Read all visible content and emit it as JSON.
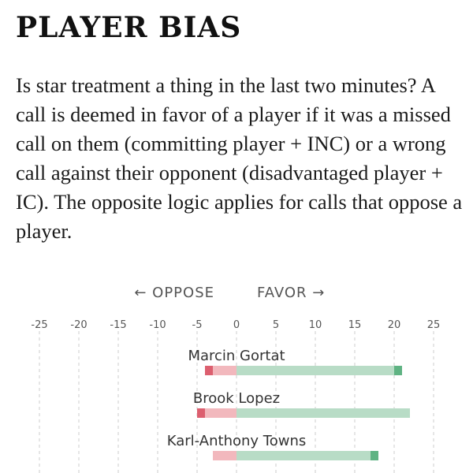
{
  "title": "PLAYER BIAS",
  "intro": "Is star treatment a thing in the last two minutes? A call is deemed in favor of a player if it was a missed call on them (committing player + INC) or a wrong call against their opponent (disadvantaged player + IC). The opposite logic applies for calls that oppose a player.",
  "chart_data": {
    "type": "bar",
    "direction_labels": {
      "left": "← OPPOSE",
      "right": "FAVOR →"
    },
    "xlim": [
      -25,
      25
    ],
    "ticks": [
      -25,
      -20,
      -15,
      -10,
      -5,
      0,
      5,
      10,
      15,
      20,
      25
    ],
    "grid": true,
    "colors": {
      "oppose_light": "#f2b8bd",
      "oppose_dark": "#dc5f6f",
      "favor_light": "#b8dcc6",
      "favor_dark": "#5fb383",
      "grid": "#cccccc"
    },
    "players": [
      {
        "name": "Marcin Gortat",
        "oppose_total": -4,
        "oppose_dark": 1,
        "favor_total": 21,
        "favor_dark": 1
      },
      {
        "name": "Brook Lopez",
        "oppose_total": -5,
        "oppose_dark": 1,
        "favor_total": 22,
        "favor_dark": 0
      },
      {
        "name": "Karl-Anthony Towns",
        "oppose_total": -3,
        "oppose_dark": 0,
        "favor_total": 18,
        "favor_dark": 1
      }
    ]
  }
}
